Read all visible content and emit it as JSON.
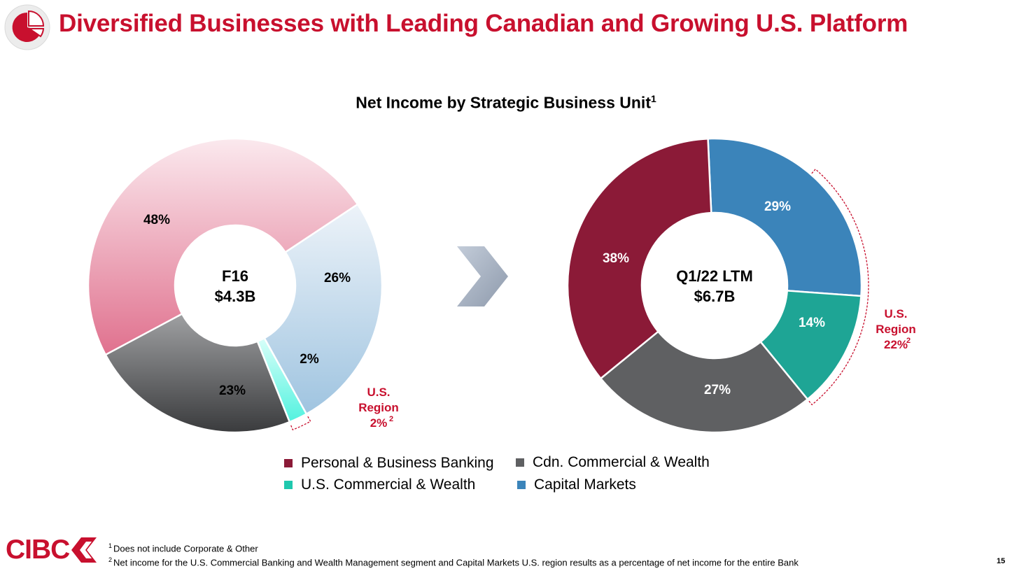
{
  "title": "Diversified Businesses with Leading Canadian and Growing U.S. Platform",
  "colors": {
    "brand": "#c8102e",
    "personal_banking": "#8b1a37",
    "commercial_wealth": "#5f6062",
    "us_commercial": "#1ea595",
    "capital_markets": "#3b84ba",
    "legend_us_commercial": "#1fc8ae"
  },
  "chart_data": {
    "type": "pie",
    "title": "Net Income by Strategic Business Unit",
    "title_footnote": "1",
    "legend": [
      {
        "label": "Personal & Business Banking",
        "color": "#8b1a37"
      },
      {
        "label": "Cdn. Commercial & Wealth",
        "color": "#5f6062"
      },
      {
        "label": "U.S. Commercial & Wealth",
        "color": "#1fc8ae"
      },
      {
        "label": "Capital Markets",
        "color": "#3b84ba"
      }
    ],
    "charts": [
      {
        "center_label": "F16",
        "center_value": "$4.3B",
        "series": [
          {
            "name": "Capital Markets",
            "value": 26,
            "label": "26%"
          },
          {
            "name": "U.S. Commercial & Wealth",
            "value": 2,
            "label": "2%"
          },
          {
            "name": "Cdn. Commercial & Wealth",
            "value": 23,
            "label": "23%"
          },
          {
            "name": "Personal & Business Banking",
            "value": 48,
            "label": "48%"
          }
        ],
        "annotation": {
          "line1": "U.S.",
          "line2": "Region",
          "value": "2%",
          "footnote": "2"
        }
      },
      {
        "center_label": "Q1/22 LTM",
        "center_value": "$6.7B",
        "series": [
          {
            "name": "Capital Markets",
            "value": 29,
            "label": "29%"
          },
          {
            "name": "U.S. Commercial & Wealth",
            "value": 14,
            "label": "14%"
          },
          {
            "name": "Cdn. Commercial & Wealth",
            "value": 27,
            "label": "27%"
          },
          {
            "name": "Personal & Business Banking",
            "value": 38,
            "label": "38%"
          }
        ],
        "annotation": {
          "line1": "U.S.",
          "line2": "Region",
          "value": "22%",
          "footnote": "2"
        }
      }
    ]
  },
  "logo": {
    "text": "CIBC"
  },
  "footnotes": [
    {
      "mark": "1",
      "text": "Does not include Corporate & Other"
    },
    {
      "mark": "2",
      "text": "Net income for the U.S. Commercial Banking and Wealth Management segment and Capital Markets U.S. region results as a percentage of net income for the entire Bank"
    }
  ],
  "page_number": "15"
}
